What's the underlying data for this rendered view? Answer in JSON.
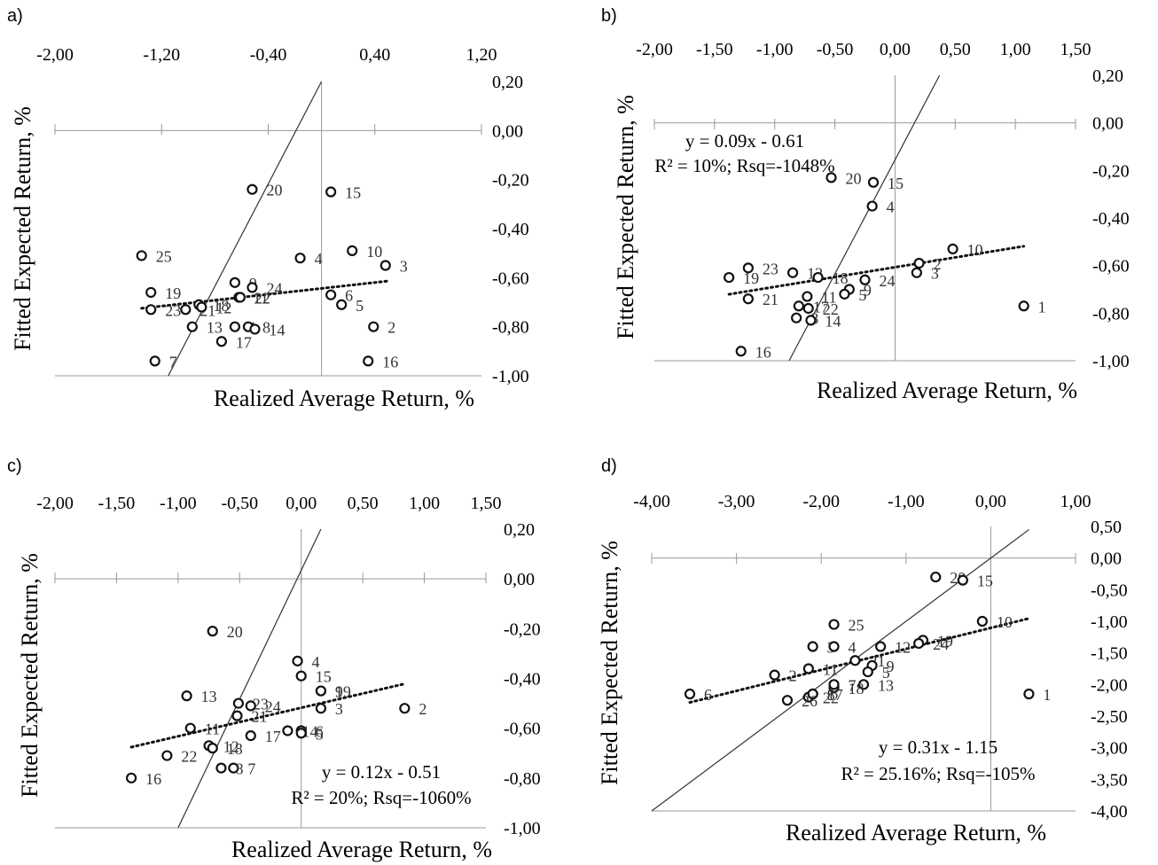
{
  "chart_data": [
    {
      "panel": "a)",
      "type": "scatter",
      "xlabel": "Realized Average Return, %",
      "ylabel": "Fitted Expected Return, %",
      "xlim": [
        -2.0,
        1.2
      ],
      "ylim": [
        -1.0,
        0.2
      ],
      "x_ticks": [
        "-2,00",
        "-1,20",
        "-0,40",
        "0,40",
        "1,20"
      ],
      "y_ticks": [
        "0,20",
        "0,00",
        "-0,20",
        "-0,40",
        "-0,60",
        "-0,80",
        "-1,00"
      ],
      "equation": "",
      "r2_text": "",
      "points": [
        {
          "label": "20",
          "x": -0.52,
          "y": -0.24
        },
        {
          "label": "15",
          "x": 0.07,
          "y": -0.25
        },
        {
          "label": "25",
          "x": -1.35,
          "y": -0.51
        },
        {
          "label": "4",
          "x": -0.16,
          "y": -0.52
        },
        {
          "label": "10",
          "x": 0.23,
          "y": -0.49
        },
        {
          "label": "3",
          "x": 0.48,
          "y": -0.55
        },
        {
          "label": "9",
          "x": -0.65,
          "y": -0.62
        },
        {
          "label": "24",
          "x": -0.52,
          "y": -0.64
        },
        {
          "label": "19",
          "x": -1.28,
          "y": -0.66
        },
        {
          "label": "11",
          "x": -0.62,
          "y": -0.68
        },
        {
          "label": "22",
          "x": -0.61,
          "y": -0.68
        },
        {
          "label": "6",
          "x": 0.07,
          "y": -0.67
        },
        {
          "label": "5",
          "x": 0.15,
          "y": -0.71
        },
        {
          "label": "23",
          "x": -1.28,
          "y": -0.73
        },
        {
          "label": "21",
          "x": -1.02,
          "y": -0.73
        },
        {
          "label": "18",
          "x": -0.92,
          "y": -0.71
        },
        {
          "label": "12",
          "x": -0.9,
          "y": -0.72
        },
        {
          "label": "13",
          "x": -0.97,
          "y": -0.8
        },
        {
          "label": "1",
          "x": -0.65,
          "y": -0.8
        },
        {
          "label": "8",
          "x": -0.55,
          "y": -0.8
        },
        {
          "label": "14",
          "x": -0.5,
          "y": -0.81
        },
        {
          "label": "2",
          "x": 0.39,
          "y": -0.8
        },
        {
          "label": "17",
          "x": -0.75,
          "y": -0.86
        },
        {
          "label": "7",
          "x": -1.25,
          "y": -0.94
        },
        {
          "label": "16",
          "x": 0.35,
          "y": -0.94
        }
      ],
      "trendline": {
        "x0": -1.35,
        "x1": 0.5
      },
      "diagonal": true
    },
    {
      "panel": "b)",
      "type": "scatter",
      "xlabel": "Realized Average Return, %",
      "ylabel": "Fitted Expected Return, %",
      "xlim": [
        -2.0,
        1.5
      ],
      "ylim": [
        -1.0,
        0.2
      ],
      "x_ticks": [
        "-2,00",
        "-1,50",
        "-1,00",
        "-0,50",
        "0,00",
        "0,50",
        "1,00",
        "1,50"
      ],
      "y_ticks": [
        "0,20",
        "0,00",
        "-0,20",
        "-0,40",
        "-0,60",
        "-0,80",
        "-1,00"
      ],
      "equation": "y = 0.09x - 0.61",
      "r2_text": "R² = 10%; Rsq=-1048%",
      "points": [
        {
          "label": "20",
          "x": -0.53,
          "y": -0.23
        },
        {
          "label": "15",
          "x": -0.18,
          "y": -0.25
        },
        {
          "label": "4",
          "x": -0.19,
          "y": -0.35
        },
        {
          "label": "10",
          "x": 0.48,
          "y": -0.53
        },
        {
          "label": "2",
          "x": 0.2,
          "y": -0.59
        },
        {
          "label": "3",
          "x": 0.18,
          "y": -0.63
        },
        {
          "label": "19",
          "x": -1.38,
          "y": -0.65
        },
        {
          "label": "23",
          "x": -1.22,
          "y": -0.61
        },
        {
          "label": "12",
          "x": -0.85,
          "y": -0.63
        },
        {
          "label": "18",
          "x": -0.64,
          "y": -0.65
        },
        {
          "label": "24",
          "x": -0.25,
          "y": -0.66
        },
        {
          "label": "9",
          "x": -0.38,
          "y": -0.7
        },
        {
          "label": "5",
          "x": -0.42,
          "y": -0.72
        },
        {
          "label": "21",
          "x": -1.22,
          "y": -0.74
        },
        {
          "label": "11",
          "x": -0.73,
          "y": -0.73
        },
        {
          "label": "17",
          "x": -0.8,
          "y": -0.77
        },
        {
          "label": "22",
          "x": -0.72,
          "y": -0.78
        },
        {
          "label": "8",
          "x": -0.82,
          "y": -0.82
        },
        {
          "label": "14",
          "x": -0.7,
          "y": -0.83
        },
        {
          "label": "1",
          "x": 1.07,
          "y": -0.77
        },
        {
          "label": "16",
          "x": -1.28,
          "y": -0.96
        }
      ],
      "trendline": {
        "x0": -1.38,
        "x1": 1.07
      },
      "diagonal": true
    },
    {
      "panel": "c)",
      "type": "scatter",
      "xlabel": "Realized Average Return, %",
      "ylabel": "Fitted Expected Return, %",
      "xlim": [
        -2.0,
        1.5
      ],
      "ylim": [
        -1.0,
        0.2
      ],
      "x_ticks": [
        "-2,00",
        "-1,50",
        "-1,00",
        "-0,50",
        "0,00",
        "0,50",
        "1,00",
        "1,50"
      ],
      "y_ticks": [
        "0,20",
        "0,00",
        "-0,20",
        "-0,40",
        "-0,60",
        "-0,80",
        "-1,00"
      ],
      "equation": "y = 0.12x - 0.51",
      "r2_text": "R² = 20%; Rsq=-1060%",
      "points": [
        {
          "label": "20",
          "x": -0.72,
          "y": -0.21
        },
        {
          "label": "4",
          "x": -0.03,
          "y": -0.33
        },
        {
          "label": "15",
          "x": 0.0,
          "y": -0.39
        },
        {
          "label": "19",
          "x": 0.16,
          "y": -0.45
        },
        {
          "label": "9",
          "x": 0.16,
          "y": -0.45
        },
        {
          "label": "3",
          "x": 0.16,
          "y": -0.52
        },
        {
          "label": "2",
          "x": 0.84,
          "y": -0.52
        },
        {
          "label": "23",
          "x": -0.51,
          "y": -0.5
        },
        {
          "label": "24",
          "x": -0.41,
          "y": -0.51
        },
        {
          "label": "21",
          "x": -0.52,
          "y": -0.55
        },
        {
          "label": "13",
          "x": -0.93,
          "y": -0.47
        },
        {
          "label": "11",
          "x": -0.9,
          "y": -0.6
        },
        {
          "label": "6",
          "x": 0.0,
          "y": -0.61
        },
        {
          "label": "14",
          "x": -0.11,
          "y": -0.61
        },
        {
          "label": "5",
          "x": 0.0,
          "y": -0.62
        },
        {
          "label": "17",
          "x": -0.41,
          "y": -0.63
        },
        {
          "label": "12",
          "x": -0.75,
          "y": -0.67
        },
        {
          "label": "18",
          "x": -0.72,
          "y": -0.68
        },
        {
          "label": "22",
          "x": -1.09,
          "y": -0.71
        },
        {
          "label": "7",
          "x": -0.55,
          "y": -0.76
        },
        {
          "label": "8",
          "x": -0.65,
          "y": -0.76
        },
        {
          "label": "16",
          "x": -1.38,
          "y": -0.8
        }
      ],
      "trendline": {
        "x0": -1.38,
        "x1": 0.84
      },
      "diagonal": true
    },
    {
      "panel": "d)",
      "type": "scatter",
      "xlabel": "Realized Average Return, %",
      "ylabel": "Fitted Expected Return, %",
      "xlim": [
        -4.0,
        1.0
      ],
      "ylim": [
        -4.0,
        0.5
      ],
      "x_ticks": [
        "-4,00",
        "-3,00",
        "-2,00",
        "-1,00",
        "0,00",
        "1,00"
      ],
      "y_ticks": [
        "0,50",
        "0,00",
        "-0,50",
        "-1,00",
        "-1,50",
        "-2,00",
        "-2,50",
        "-3,00",
        "-3,50",
        "-4,00"
      ],
      "equation": "y = 0.31x - 1.15",
      "r2_text": "R² = 25.16%; Rsq=-105%",
      "points": [
        {
          "label": "20",
          "x": -0.65,
          "y": -0.3
        },
        {
          "label": "15",
          "x": -0.33,
          "y": -0.35
        },
        {
          "label": "10",
          "x": -0.1,
          "y": -1.0
        },
        {
          "label": "25",
          "x": -1.85,
          "y": -1.05
        },
        {
          "label": "12",
          "x": -1.3,
          "y": -1.4
        },
        {
          "label": "3",
          "x": -2.1,
          "y": -1.4
        },
        {
          "label": "4",
          "x": -1.85,
          "y": -1.4
        },
        {
          "label": "19",
          "x": -0.8,
          "y": -1.3
        },
        {
          "label": "24",
          "x": -0.85,
          "y": -1.35
        },
        {
          "label": "21",
          "x": -1.6,
          "y": -1.62
        },
        {
          "label": "11",
          "x": -2.15,
          "y": -1.75
        },
        {
          "label": "2",
          "x": -2.55,
          "y": -1.85
        },
        {
          "label": "9",
          "x": -1.4,
          "y": -1.7
        },
        {
          "label": "5",
          "x": -1.45,
          "y": -1.8
        },
        {
          "label": "13",
          "x": -1.5,
          "y": -2.0
        },
        {
          "label": "18",
          "x": -1.85,
          "y": -2.05
        },
        {
          "label": "17",
          "x": -2.1,
          "y": -2.15
        },
        {
          "label": "22",
          "x": -2.15,
          "y": -2.2
        },
        {
          "label": "7",
          "x": -1.85,
          "y": -2.0
        },
        {
          "label": "8",
          "x": -2.1,
          "y": -2.15
        },
        {
          "label": "26",
          "x": -2.4,
          "y": -2.25
        },
        {
          "label": "6",
          "x": -3.55,
          "y": -2.15
        },
        {
          "label": "1",
          "x": 0.45,
          "y": -2.15
        }
      ],
      "trendline": {
        "x0": -3.55,
        "x1": 0.45
      },
      "diagonal": true
    }
  ]
}
